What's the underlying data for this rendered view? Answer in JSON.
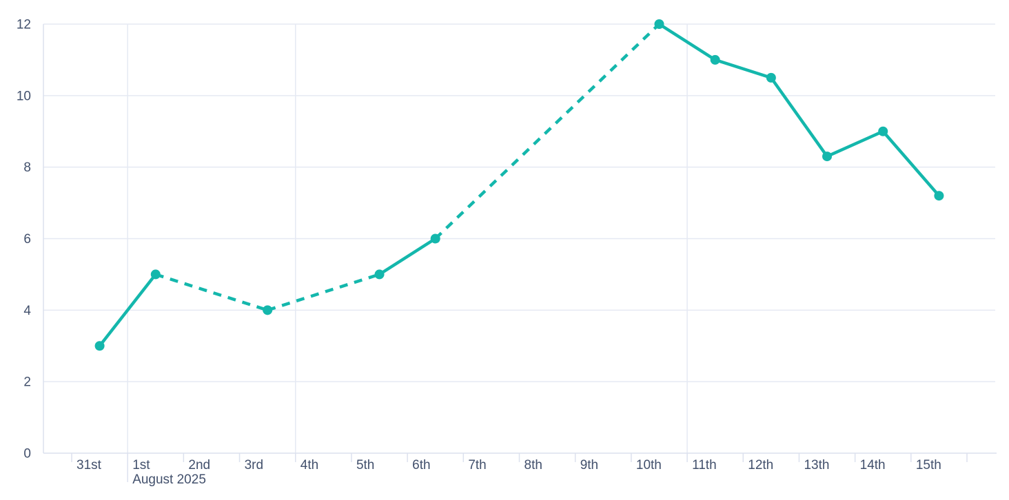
{
  "chart_data": {
    "type": "line",
    "title": "",
    "x_axis": {
      "day_labels": [
        "31st",
        "1st",
        "2nd",
        "3rd",
        "4th",
        "5th",
        "6th",
        "7th",
        "8th",
        "9th",
        "10th",
        "11th",
        "12th",
        "13th",
        "14th",
        "15th"
      ],
      "month_label": "August 2025",
      "month_label_under": "1st"
    },
    "y_axis": {
      "tick_labels": [
        "0",
        "2",
        "4",
        "6",
        "8",
        "10",
        "12"
      ],
      "tick_values": [
        0,
        2,
        4,
        6,
        8,
        10,
        12
      ],
      "min": 0,
      "max": 12
    },
    "series": [
      {
        "name": "daily-values",
        "color": "#14b7ac",
        "points": [
          {
            "day": "31st",
            "value": 3,
            "line_to_next": "solid"
          },
          {
            "day": "1st",
            "value": 5,
            "line_to_next": "dashed"
          },
          {
            "day": "3rd",
            "value": 4,
            "line_to_next": "dashed"
          },
          {
            "day": "5th",
            "value": 5,
            "line_to_next": "solid"
          },
          {
            "day": "6th",
            "value": 6,
            "line_to_next": "dashed"
          },
          {
            "day": "10th",
            "value": 12,
            "line_to_next": "solid"
          },
          {
            "day": "11th",
            "value": 11,
            "line_to_next": "solid"
          },
          {
            "day": "12th",
            "value": 10.5,
            "line_to_next": "solid"
          },
          {
            "day": "13th",
            "value": 8.3,
            "line_to_next": "solid"
          },
          {
            "day": "14th",
            "value": 9,
            "line_to_next": "solid"
          },
          {
            "day": "15th",
            "value": 7.2,
            "line_to_next": null
          }
        ]
      }
    ],
    "grid": {
      "horizontal_values": [
        2,
        4,
        6,
        8,
        10,
        12
      ],
      "vertical_at_days": [
        "1st",
        "4th",
        "11th"
      ],
      "grid_on": true,
      "legend": "none"
    },
    "colors": {
      "series_line": "#14b7ac",
      "grid_line": "#e5e9f3",
      "axis_line": "#dce1ee",
      "label_text": "#42506c",
      "background": "#ffffff"
    }
  }
}
